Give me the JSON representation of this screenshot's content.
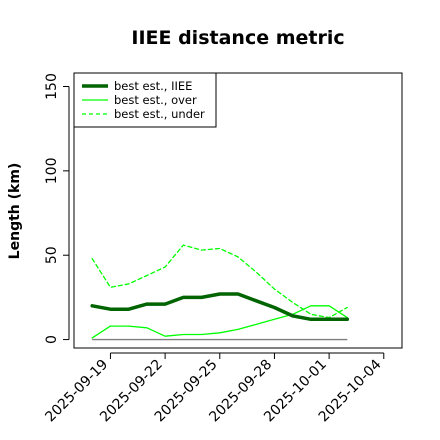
{
  "chart_data": {
    "type": "line",
    "title": "IIEE distance metric",
    "xlabel": "",
    "ylabel": "Length (km)",
    "x": [
      "2025-09-18",
      "2025-09-19",
      "2025-09-20",
      "2025-09-21",
      "2025-09-22",
      "2025-09-23",
      "2025-09-24",
      "2025-09-25",
      "2025-09-26",
      "2025-09-27",
      "2025-09-28",
      "2025-09-29",
      "2025-09-30",
      "2025-10-01",
      "2025-10-02"
    ],
    "xticks": [
      "2025-09-19",
      "2025-09-22",
      "2025-09-25",
      "2025-09-28",
      "2025-10-01",
      "2025-10-04"
    ],
    "xlim": [
      "2025-09-17",
      "2025-10-05"
    ],
    "yticks": [
      "0",
      "50",
      "100",
      "150"
    ],
    "ylim": [
      -5,
      158
    ],
    "baseline": 0,
    "grid": false,
    "legend_position": "top-left",
    "series": [
      {
        "name": "best est., IIEE",
        "color": "#006400",
        "style": "solid",
        "width": 3.5,
        "values": [
          20,
          18,
          18,
          21,
          21,
          25,
          25,
          27,
          27,
          23,
          19,
          14,
          12,
          12,
          12
        ]
      },
      {
        "name": "best est., over",
        "color": "#00ff00",
        "style": "solid",
        "width": 1.3,
        "values": [
          1,
          8,
          8,
          7,
          2,
          3,
          3,
          4,
          6,
          9,
          12,
          15,
          20,
          20,
          13
        ]
      },
      {
        "name": "best est., under",
        "color": "#00ff00",
        "style": "dashed",
        "width": 1.3,
        "values": [
          48,
          31,
          33,
          38,
          43,
          56,
          53,
          54,
          49,
          40,
          30,
          22,
          15,
          13,
          19
        ]
      }
    ]
  }
}
